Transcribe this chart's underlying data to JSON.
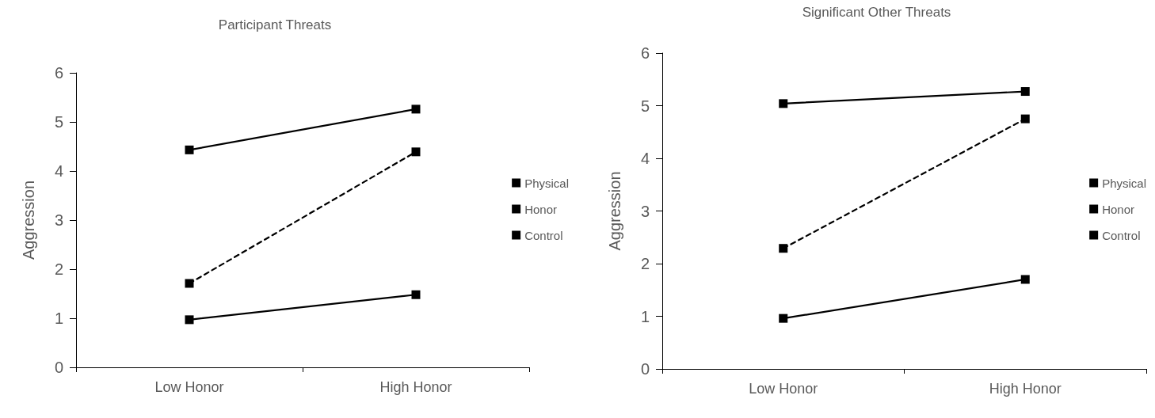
{
  "chart_data": [
    {
      "type": "line",
      "title": "Participant Threats",
      "ylabel": "Aggression",
      "categories": [
        "Low Honor",
        "High Honor"
      ],
      "ylim": [
        0,
        6
      ],
      "yticks": [
        0,
        1,
        2,
        3,
        4,
        5,
        6
      ],
      "grid": false,
      "legend": "right",
      "marker": "square",
      "series": [
        {
          "name": "Physical",
          "color": "#000000",
          "values": [
            4.43,
            5.26
          ],
          "line_style": "solid"
        },
        {
          "name": "Honor",
          "color": "#000000",
          "values": [
            1.71,
            4.39
          ],
          "line_style": "dashed"
        },
        {
          "name": "Control",
          "color": "#000000",
          "values": [
            0.97,
            1.48
          ],
          "line_style": "solid"
        }
      ]
    },
    {
      "type": "line",
      "title": "Significant Other Threats",
      "ylabel": "Aggression",
      "categories": [
        "Low Honor",
        "High Honor"
      ],
      "ylim": [
        0,
        6
      ],
      "yticks": [
        0,
        1,
        2,
        3,
        4,
        5,
        6
      ],
      "grid": false,
      "legend": "right",
      "marker": "square",
      "series": [
        {
          "name": "Physical",
          "color": "#000000",
          "values": [
            5.04,
            5.27
          ],
          "line_style": "solid"
        },
        {
          "name": "Honor",
          "color": "#000000",
          "values": [
            2.29,
            4.75
          ],
          "line_style": "dashed"
        },
        {
          "name": "Control",
          "color": "#000000",
          "values": [
            0.96,
            1.7
          ],
          "line_style": "solid"
        }
      ]
    }
  ]
}
